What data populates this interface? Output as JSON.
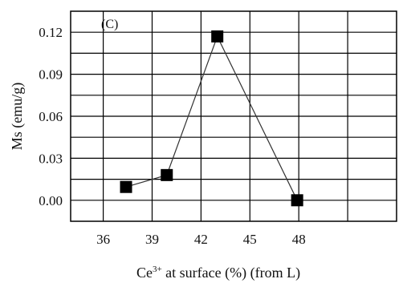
{
  "chart_data": {
    "type": "line",
    "panel_label": "(C)",
    "xlabel_base": "Ce",
    "xlabel_sup": "3+",
    "xlabel_rest": " at surface (%) (from L)",
    "ylabel": "Ms (emu/g)",
    "xlim": [
      34,
      54
    ],
    "ylim": [
      -0.015,
      0.135
    ],
    "x_ticks": [
      36,
      39,
      42,
      45,
      48
    ],
    "x_tick_labels": [
      "36",
      "39",
      "42",
      "45",
      "48"
    ],
    "y_ticks": [
      0.0,
      0.03,
      0.06,
      0.09,
      0.12
    ],
    "y_tick_labels": [
      "0.00",
      "0.03",
      "0.06",
      "0.09",
      "0.12"
    ],
    "grid": true,
    "x_gridlines": [
      36,
      39,
      42,
      45,
      48,
      51
    ],
    "y_gridlines": [
      0.0,
      0.015,
      0.03,
      0.045,
      0.06,
      0.075,
      0.09,
      0.105,
      0.12
    ],
    "series": [
      {
        "marker": "square",
        "color": "#000000",
        "x": [
          37.4,
          39.9,
          43.0,
          47.9
        ],
        "y": [
          0.0095,
          0.018,
          0.117,
          0.0
        ]
      }
    ]
  }
}
